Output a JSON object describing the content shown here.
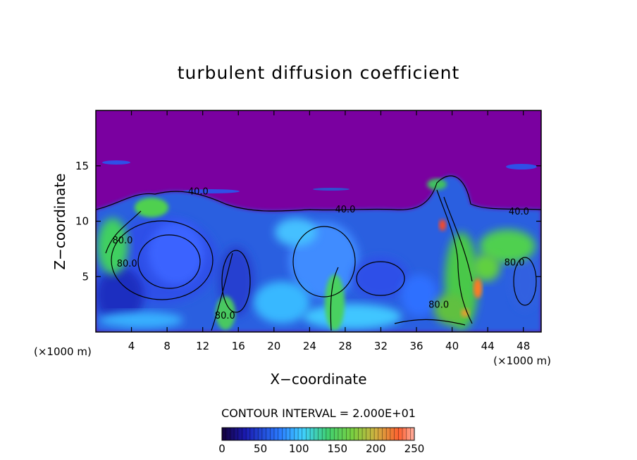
{
  "chart_data": {
    "type": "heatmap",
    "title": "turbulent diffusion coefficient",
    "xlabel": "X−coordinate",
    "ylabel": "Z−coordinate",
    "x_unit_label_left": "(×1000 m)",
    "x_unit_label_right": "(×1000 m)",
    "xlim": [
      0,
      50
    ],
    "ylim": [
      0,
      20
    ],
    "xticks": [
      4,
      8,
      12,
      16,
      20,
      24,
      28,
      32,
      36,
      40,
      44,
      48
    ],
    "xtick_labels": [
      "4",
      "8",
      "12",
      "16",
      "20",
      "24",
      "28",
      "32",
      "36",
      "40",
      "44",
      "48"
    ],
    "yticks": [
      5,
      10,
      15
    ],
    "ytick_labels": [
      "5",
      "10",
      "15"
    ],
    "contour_interval_text": "CONTOUR INTERVAL = 2.000E+01",
    "contour_labels": [
      {
        "text": "40.0",
        "x": 11.5,
        "y": 12.4
      },
      {
        "text": "40.0",
        "x": 28.0,
        "y": 10.8
      },
      {
        "text": "40.0",
        "x": 47.5,
        "y": 10.6
      },
      {
        "text": "80.0",
        "x": 3.0,
        "y": 8.0
      },
      {
        "text": "80.0",
        "x": 3.5,
        "y": 5.9
      },
      {
        "text": "80.0",
        "x": 14.5,
        "y": 1.2
      },
      {
        "text": "80.0",
        "x": 38.5,
        "y": 2.2
      },
      {
        "text": "80.0",
        "x": 47.0,
        "y": 6.0
      }
    ],
    "colorbar": {
      "min": 0,
      "max": 250,
      "ticks": [
        0,
        50,
        100,
        150,
        200,
        250
      ],
      "tick_labels": [
        "0",
        "50",
        "100",
        "150",
        "200",
        "250"
      ]
    },
    "colors": {
      "background": "#7a00a0",
      "low": "#1a1ab0",
      "mid": "#3fa6ff",
      "high": "#40d060",
      "peak": "#ff4a20"
    }
  }
}
